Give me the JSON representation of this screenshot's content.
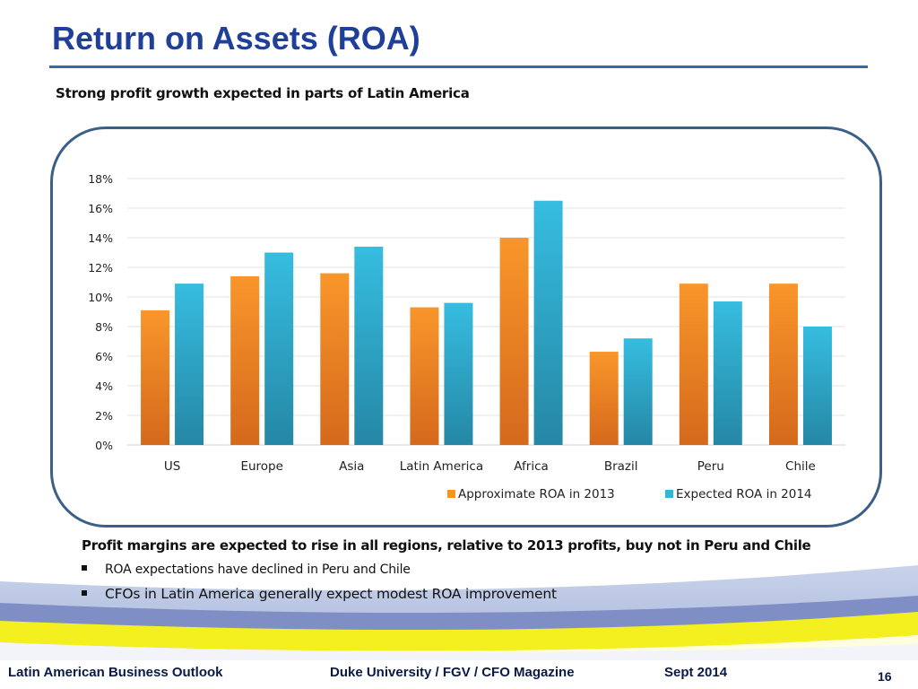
{
  "slide": {
    "title": "Return on Assets (ROA)",
    "subtitle": "Strong profit growth expected in parts of Latin America",
    "note_heading": "Profit margins are expected to rise in all regions, relative to 2013 profits, buy not in Peru and Chile",
    "bullets": [
      "ROA expectations have declined in  Peru and Chile",
      "CFOs in Latin America generally expect modest ROA improvement"
    ]
  },
  "footer": {
    "left": "Latin American Business Outlook",
    "middle": "Duke University / FGV / CFO Magazine",
    "date": "Sept 2014",
    "page_number": "16"
  },
  "colors": {
    "title": "#1f3f99",
    "series_2013": "#f7941d",
    "series_2014": "#31b5d9",
    "frame": "#3b5f86"
  },
  "chart_data": {
    "type": "bar",
    "categories": [
      "US",
      "Europe",
      "Asia",
      "Latin America",
      "Africa",
      "Brazil",
      "Peru",
      "Chile"
    ],
    "series": [
      {
        "name": "Approximate ROA in 2013",
        "values": [
          9.1,
          11.4,
          11.6,
          9.3,
          14.0,
          6.3,
          10.9,
          10.9
        ]
      },
      {
        "name": "Expected ROA in 2014",
        "values": [
          10.9,
          13.0,
          13.4,
          9.6,
          16.5,
          7.2,
          9.7,
          8.0
        ]
      }
    ],
    "ylim": [
      0,
      18
    ],
    "yticks": [
      "0%",
      "2%",
      "4%",
      "6%",
      "8%",
      "10%",
      "12%",
      "14%",
      "16%",
      "18%"
    ],
    "ytick_values": [
      0,
      2,
      4,
      6,
      8,
      10,
      12,
      14,
      16,
      18
    ],
    "grid": true,
    "legend_position": "bottom-right"
  }
}
